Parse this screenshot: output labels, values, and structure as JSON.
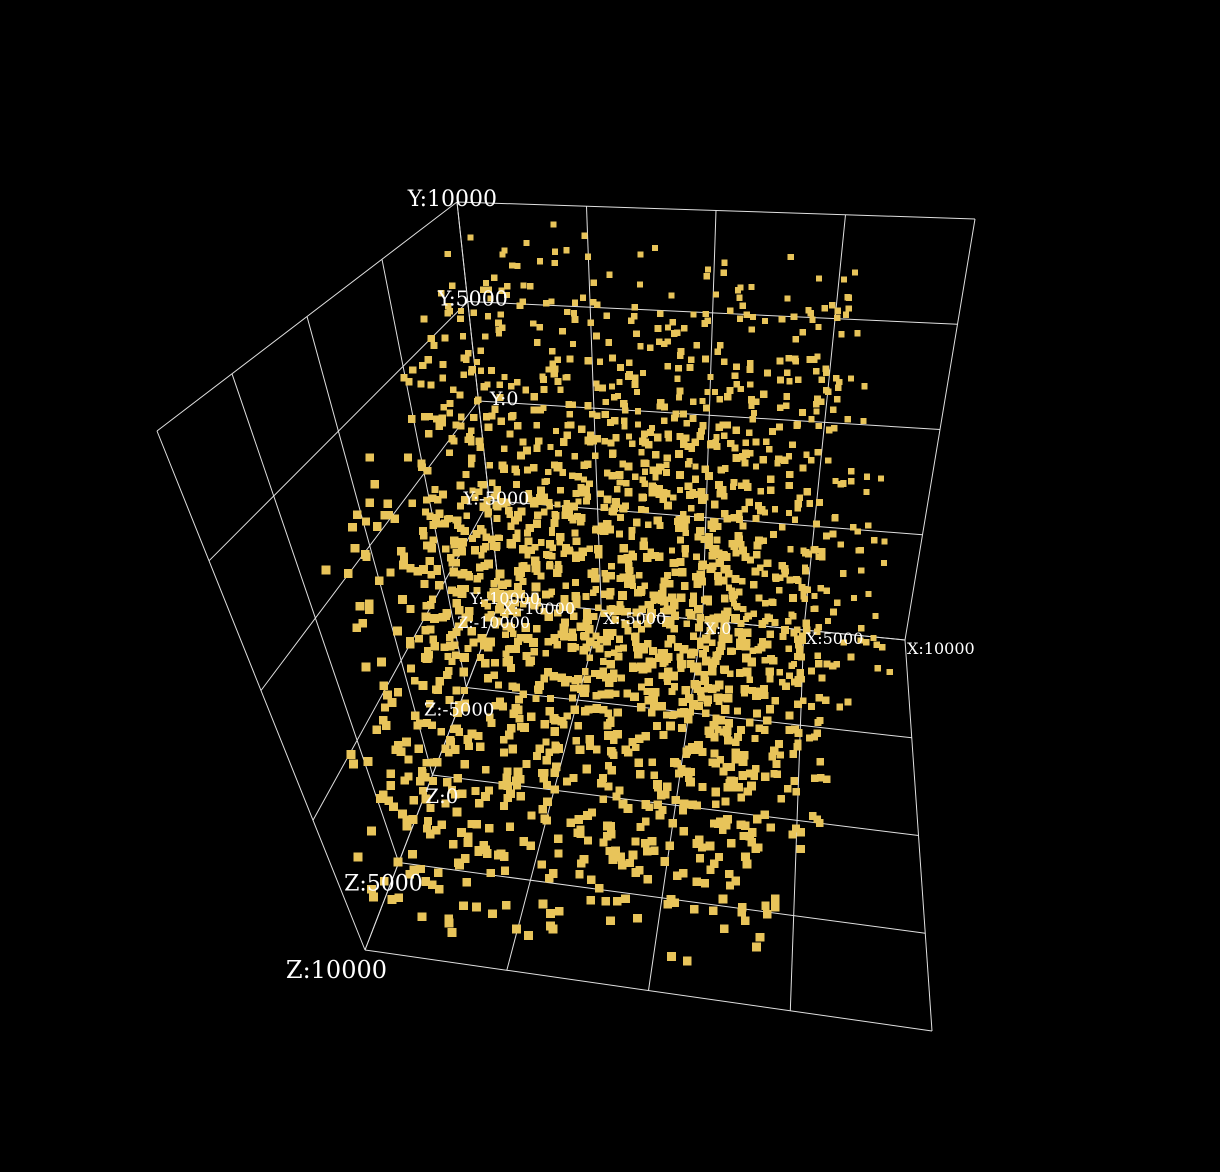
{
  "chart_data": {
    "type": "scatter",
    "title": "",
    "xlabel": "",
    "ylabel": "",
    "zlabel": "",
    "xlim": [
      -10000,
      10000
    ],
    "ylim": [
      -10000,
      10000
    ],
    "zlim": [
      -10000,
      10000
    ],
    "grid": true,
    "legend": "none",
    "point_color": "#e8c45a",
    "background_color": "#000000",
    "grid_color": "#e0e0e0",
    "point_count": 2000,
    "ticks": {
      "x": [
        {
          "value": -10000,
          "label": "X:-10000"
        },
        {
          "value": -5000,
          "label": "X:-5000"
        },
        {
          "value": 0,
          "label": "X:0"
        },
        {
          "value": 5000,
          "label": "X:5000"
        },
        {
          "value": 10000,
          "label": "X:10000"
        }
      ],
      "y": [
        {
          "value": -10000,
          "label": "Y:-10000"
        },
        {
          "value": -5000,
          "label": "Y:-5000"
        },
        {
          "value": 0,
          "label": "Y:0"
        },
        {
          "value": 5000,
          "label": "Y:5000"
        },
        {
          "value": 10000,
          "label": "Y:10000"
        }
      ],
      "z": [
        {
          "value": -10000,
          "label": "Z:-10000"
        },
        {
          "value": -5000,
          "label": "Z:-5000"
        },
        {
          "value": 0,
          "label": "Z:0"
        },
        {
          "value": 5000,
          "label": "Z:5000"
        },
        {
          "value": 10000,
          "label": "Z:10000"
        }
      ]
    }
  }
}
